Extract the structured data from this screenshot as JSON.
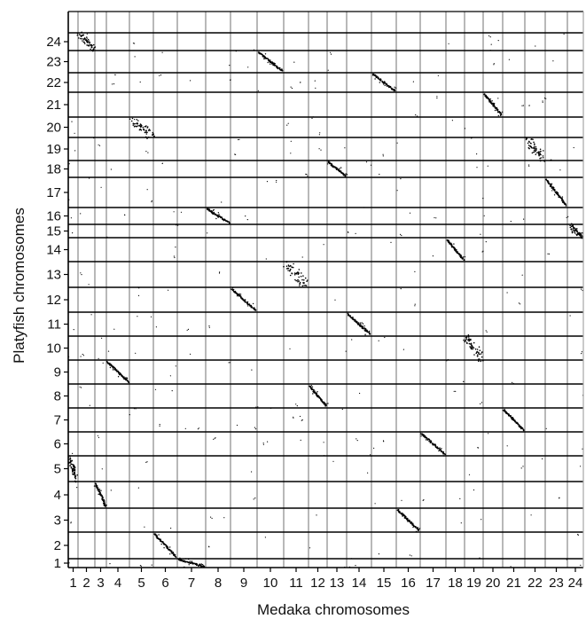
{
  "chart_data": {
    "type": "scatter",
    "xlabel": "Medaka chromosomes",
    "ylabel": "Platyfish chromosomes",
    "x_ticks": [
      "1",
      "2",
      "3",
      "4",
      "5",
      "6",
      "7",
      "8",
      "9",
      "10",
      "11",
      "12",
      "13",
      "14",
      "15",
      "16",
      "17",
      "18",
      "19",
      "20",
      "21",
      "22",
      "23",
      "24"
    ],
    "y_ticks": [
      "1",
      "2",
      "3",
      "4",
      "5",
      "6",
      "7",
      "8",
      "9",
      "10",
      "11",
      "12",
      "13",
      "14",
      "15",
      "16",
      "17",
      "18",
      "19",
      "20",
      "21",
      "22",
      "23",
      "24"
    ],
    "grid": true,
    "colors": {
      "points": "#000000",
      "vertical_grid": "#a6a6a6",
      "horizontal_grid": "#000000",
      "axes": "#000000"
    },
    "synteny_blocks": [
      {
        "medaka": "1",
        "platyfish": "5",
        "pattern": "cluster"
      },
      {
        "medaka": "2",
        "platyfish": "24",
        "pattern": "cluster"
      },
      {
        "medaka": "3",
        "platyfish": "4",
        "pattern": "diagonal"
      },
      {
        "medaka": "4",
        "platyfish": "9",
        "pattern": "diagonal"
      },
      {
        "medaka": "5",
        "platyfish": "20",
        "pattern": "cluster"
      },
      {
        "medaka": "6",
        "platyfish": "2",
        "pattern": "diagonal"
      },
      {
        "medaka": "7",
        "platyfish": "1",
        "pattern": "diagonal"
      },
      {
        "medaka": "8",
        "platyfish": "16",
        "pattern": "diagonal"
      },
      {
        "medaka": "9",
        "platyfish": "12",
        "pattern": "diagonal"
      },
      {
        "medaka": "10",
        "platyfish": "23",
        "pattern": "diagonal"
      },
      {
        "medaka": "11",
        "platyfish": "13",
        "pattern": "cluster"
      },
      {
        "medaka": "12",
        "platyfish": "8",
        "pattern": "diagonal"
      },
      {
        "medaka": "13",
        "platyfish": "18",
        "pattern": "diagonal"
      },
      {
        "medaka": "14",
        "platyfish": "11",
        "pattern": "diagonal"
      },
      {
        "medaka": "15",
        "platyfish": "22",
        "pattern": "diagonal"
      },
      {
        "medaka": "16",
        "platyfish": "3",
        "pattern": "diagonal"
      },
      {
        "medaka": "17",
        "platyfish": "6",
        "pattern": "diagonal"
      },
      {
        "medaka": "18",
        "platyfish": "14",
        "pattern": "diagonal"
      },
      {
        "medaka": "19",
        "platyfish": "10",
        "pattern": "cluster"
      },
      {
        "medaka": "20",
        "platyfish": "21",
        "pattern": "diagonal"
      },
      {
        "medaka": "21",
        "platyfish": "7",
        "pattern": "diagonal"
      },
      {
        "medaka": "22",
        "platyfish": "19",
        "pattern": "cluster"
      },
      {
        "medaka": "23",
        "platyfish": "17",
        "pattern": "diagonal"
      },
      {
        "medaka": "24",
        "platyfish": "15",
        "pattern": "cluster"
      }
    ]
  }
}
